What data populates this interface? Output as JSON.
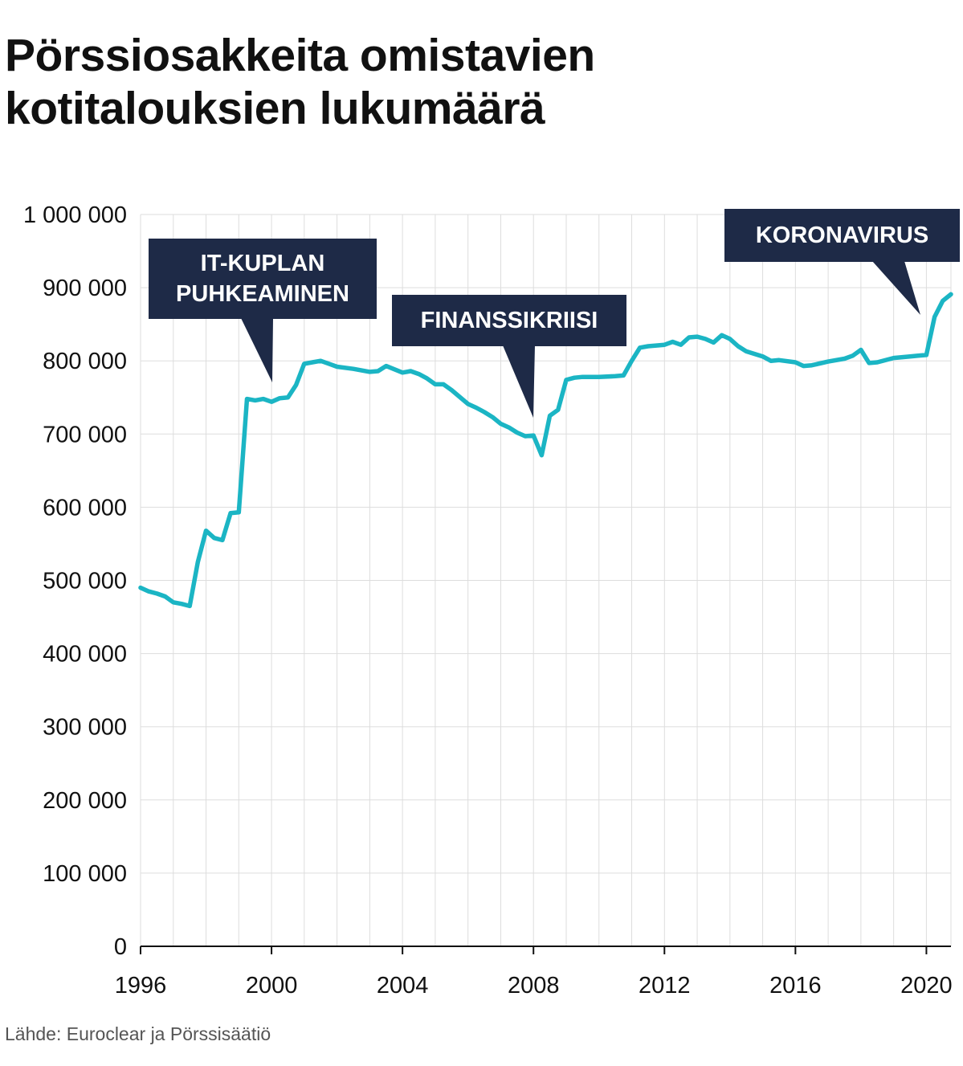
{
  "title_lines": [
    "Pörssiosakkeita omistavien",
    "kotitalouksien lukumäärä"
  ],
  "source": "Lähde: Euroclear ja Pörssisäätiö",
  "colors": {
    "line": "#1bb5c4",
    "annotation_bg": "#1e2a47",
    "grid": "#dddddd"
  },
  "annotations": [
    {
      "lines": [
        "IT-KUPLAN",
        "PUHKEAMINEN"
      ]
    },
    {
      "lines": [
        "FINANSSIKRIISI"
      ]
    },
    {
      "lines": [
        "KORONAVIRUS"
      ]
    }
  ],
  "chart_data": {
    "type": "line",
    "xlim": [
      1996,
      2020.75
    ],
    "ylim": [
      0,
      1000000
    ],
    "xticks": [
      1996,
      2000,
      2004,
      2008,
      2012,
      2016,
      2020
    ],
    "xtick_labels": [
      "1996",
      "2000",
      "2004",
      "2008",
      "2012",
      "2016",
      "2020"
    ],
    "yticks": [
      0,
      100000,
      200000,
      300000,
      400000,
      500000,
      600000,
      700000,
      800000,
      900000,
      1000000
    ],
    "ytick_labels": [
      "0",
      "100 000",
      "200 000",
      "300 000",
      "400 000",
      "500 000",
      "600 000",
      "700 000",
      "800 000",
      "900 000",
      "1 000 000"
    ],
    "grid": true,
    "legend": "none",
    "series": [
      {
        "x": [
          1996.0,
          1996.25,
          1996.5,
          1996.75,
          1997.0,
          1997.25,
          1997.5,
          1997.75,
          1998.0,
          1998.25,
          1998.5,
          1998.75,
          1999.0,
          1999.25,
          1999.5,
          1999.75,
          2000.0,
          2000.25,
          2000.5,
          2000.75,
          2001.0,
          2001.25,
          2001.5,
          2001.75,
          2002.0,
          2002.5,
          2003.0,
          2003.25,
          2003.5,
          2004.0,
          2004.25,
          2004.5,
          2004.75,
          2005.0,
          2005.25,
          2005.5,
          2006.0,
          2006.25,
          2006.5,
          2006.75,
          2007.0,
          2007.25,
          2007.5,
          2007.75,
          2008.0,
          2008.25,
          2008.5,
          2008.75,
          2009.0,
          2009.25,
          2009.5,
          2010.0,
          2010.5,
          2010.75,
          2011.0,
          2011.25,
          2011.5,
          2012.0,
          2012.25,
          2012.5,
          2012.75,
          2013.0,
          2013.25,
          2013.5,
          2013.75,
          2014.0,
          2014.25,
          2014.5,
          2015.0,
          2015.25,
          2015.5,
          2016.0,
          2016.25,
          2016.5,
          2017.0,
          2017.5,
          2017.75,
          2018.0,
          2018.25,
          2018.5,
          2019.0,
          2019.5,
          2019.75,
          2020.0,
          2020.25,
          2020.5,
          2020.75
        ],
        "y": [
          490000,
          485000,
          482000,
          478000,
          470000,
          468000,
          465000,
          525000,
          568000,
          558000,
          555000,
          592000,
          593000,
          748000,
          746000,
          748000,
          744000,
          749000,
          750000,
          767000,
          796000,
          798000,
          800000,
          796000,
          792000,
          789000,
          785000,
          786000,
          793000,
          784000,
          786000,
          782000,
          776000,
          768000,
          768000,
          760000,
          741000,
          736000,
          730000,
          723000,
          714000,
          709000,
          702000,
          697000,
          698000,
          671000,
          725000,
          733000,
          774000,
          777000,
          778000,
          778000,
          779000,
          780000,
          800000,
          818000,
          820000,
          822000,
          826000,
          822000,
          832000,
          833000,
          830000,
          825000,
          835000,
          830000,
          820000,
          813000,
          806000,
          800000,
          801000,
          798000,
          793000,
          794000,
          799000,
          803000,
          807000,
          815000,
          797000,
          798000,
          804000,
          806000,
          807000,
          808000,
          860000,
          882000,
          891000
        ]
      }
    ]
  }
}
